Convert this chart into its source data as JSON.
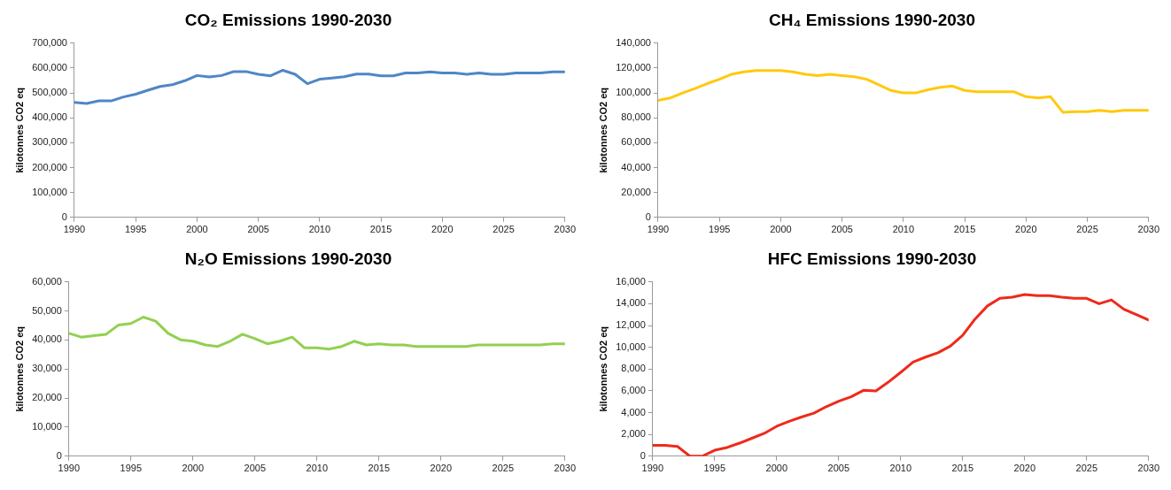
{
  "chart_data": [
    {
      "type": "line",
      "title": "CO₂ Emissions 1990-2030",
      "ylabel": "kilotonnes CO2 eq",
      "x": [
        1990,
        1991,
        1992,
        1993,
        1994,
        1995,
        1996,
        1997,
        1998,
        1999,
        2000,
        2001,
        2002,
        2003,
        2004,
        2005,
        2006,
        2007,
        2008,
        2009,
        2010,
        2011,
        2012,
        2013,
        2014,
        2015,
        2016,
        2017,
        2018,
        2019,
        2020,
        2021,
        2022,
        2023,
        2024,
        2025,
        2026,
        2027,
        2028,
        2029,
        2030
      ],
      "series": [
        {
          "color": "#4f86c6",
          "values": [
            462000,
            458000,
            468000,
            468000,
            484000,
            495000,
            511000,
            526000,
            533000,
            549000,
            570000,
            564000,
            570000,
            586000,
            586000,
            575000,
            569000,
            591000,
            575000,
            537000,
            555000,
            560000,
            565000,
            576000,
            576000,
            569000,
            569000,
            580000,
            580000,
            585000,
            580000,
            580000,
            575000,
            580000,
            575000,
            575000,
            580000,
            580000,
            580000,
            585000,
            585000
          ]
        }
      ],
      "xlim": [
        1990,
        2030
      ],
      "xticks": [
        1990,
        1995,
        2000,
        2005,
        2010,
        2015,
        2020,
        2025,
        2030
      ],
      "ylim": [
        0,
        700000
      ],
      "yticks": [
        {
          "value": 0,
          "label": "0"
        },
        {
          "value": 100000,
          "label": "100,000"
        },
        {
          "value": 200000,
          "label": "200,000"
        },
        {
          "value": 300000,
          "label": "300,000"
        },
        {
          "value": 400000,
          "label": "400,000"
        },
        {
          "value": 500000,
          "label": "500,000"
        },
        {
          "value": 600000,
          "label": "600,000"
        },
        {
          "value": 700000,
          "label": "700,000"
        }
      ],
      "grid": false,
      "legend": false,
      "marker": "none",
      "line_style": "solid"
    },
    {
      "type": "line",
      "title": "CH₄ Emissions 1990-2030",
      "ylabel": "kilotonnes CO2 eq",
      "x": [
        1990,
        1991,
        1992,
        1993,
        1994,
        1995,
        1996,
        1997,
        1998,
        1999,
        2000,
        2001,
        2002,
        2003,
        2004,
        2005,
        2006,
        2007,
        2008,
        2009,
        2010,
        2011,
        2012,
        2013,
        2014,
        2015,
        2016,
        2017,
        2018,
        2019,
        2020,
        2021,
        2022,
        2023,
        2024,
        2025,
        2026,
        2027,
        2028,
        2029,
        2030
      ],
      "series": [
        {
          "color": "#ffc90e",
          "values": [
            94000,
            96000,
            100000,
            103500,
            107500,
            111000,
            115000,
            117000,
            118000,
            118000,
            118000,
            117000,
            115000,
            114000,
            115000,
            114000,
            113000,
            111000,
            106500,
            102000,
            100000,
            100000,
            102500,
            104500,
            105500,
            102000,
            101000,
            101000,
            101000,
            101000,
            97000,
            96000,
            97000,
            84500,
            85000,
            85000,
            86000,
            85000,
            86000,
            86000,
            86000
          ]
        }
      ],
      "xlim": [
        1990,
        2030
      ],
      "xticks": [
        1990,
        1995,
        2000,
        2005,
        2010,
        2015,
        2020,
        2025,
        2030
      ],
      "ylim": [
        0,
        140000
      ],
      "yticks": [
        {
          "value": 0,
          "label": "0"
        },
        {
          "value": 20000,
          "label": "20,000"
        },
        {
          "value": 40000,
          "label": "40,000"
        },
        {
          "value": 60000,
          "label": "60,000"
        },
        {
          "value": 80000,
          "label": "80,000"
        },
        {
          "value": 100000,
          "label": "100,000"
        },
        {
          "value": 120000,
          "label": "120,000"
        },
        {
          "value": 140000,
          "label": "140,000"
        }
      ],
      "grid": false,
      "legend": false,
      "marker": "none",
      "line_style": "solid"
    },
    {
      "type": "line",
      "title": "N₂O Emissions 1990-2030",
      "ylabel": "kilotonnes CO2 eq",
      "x": [
        1990,
        1991,
        1992,
        1993,
        1994,
        1995,
        1996,
        1997,
        1998,
        1999,
        2000,
        2001,
        2002,
        2003,
        2004,
        2005,
        2006,
        2007,
        2008,
        2009,
        2010,
        2011,
        2012,
        2013,
        2014,
        2015,
        2016,
        2017,
        2018,
        2019,
        2020,
        2021,
        2022,
        2023,
        2024,
        2025,
        2026,
        2027,
        2028,
        2029,
        2030
      ],
      "series": [
        {
          "color": "#92d050",
          "values": [
            42300,
            41000,
            41500,
            42000,
            45200,
            45700,
            47900,
            46500,
            42300,
            40100,
            39600,
            38300,
            37800,
            39600,
            42000,
            40500,
            38700,
            39600,
            41000,
            37300,
            37300,
            36900,
            37800,
            39600,
            38300,
            38700,
            38300,
            38300,
            37800,
            37800,
            37800,
            37800,
            37800,
            38300,
            38300,
            38300,
            38300,
            38300,
            38300,
            38700,
            38700
          ]
        }
      ],
      "xlim": [
        1990,
        2030
      ],
      "xticks": [
        1990,
        1995,
        2000,
        2005,
        2010,
        2015,
        2020,
        2025,
        2030
      ],
      "ylim": [
        0,
        60000
      ],
      "yticks": [
        {
          "value": 0,
          "label": "0"
        },
        {
          "value": 10000,
          "label": "10,000"
        },
        {
          "value": 20000,
          "label": "20,000"
        },
        {
          "value": 30000,
          "label": "30,000"
        },
        {
          "value": 40000,
          "label": "40,000"
        },
        {
          "value": 50000,
          "label": "50,000"
        },
        {
          "value": 60000,
          "label": "60,000"
        }
      ],
      "grid": false,
      "legend": false,
      "marker": "none",
      "line_style": "solid"
    },
    {
      "type": "line",
      "title": "HFC Emissions 1990-2030",
      "ylabel": "kilotonnes CO2 eq",
      "x": [
        1990,
        1991,
        1992,
        1993,
        1994,
        1995,
        1996,
        1997,
        1998,
        1999,
        2000,
        2001,
        2002,
        2003,
        2004,
        2005,
        2006,
        2007,
        2008,
        2009,
        2010,
        2011,
        2012,
        2013,
        2014,
        2015,
        2016,
        2017,
        2018,
        2019,
        2020,
        2021,
        2022,
        2023,
        2024,
        2025,
        2026,
        2027,
        2028,
        2029,
        2030
      ],
      "series": [
        {
          "color": "#ee2a1b",
          "values": [
            1000,
            1000,
            900,
            0,
            0,
            550,
            800,
            1200,
            1650,
            2100,
            2750,
            3200,
            3600,
            3950,
            4550,
            5050,
            5450,
            6050,
            6000,
            6800,
            7700,
            8650,
            9100,
            9500,
            10100,
            11100,
            12600,
            13800,
            14500,
            14600,
            14850,
            14750,
            14750,
            14600,
            14500,
            14500,
            14000,
            14350,
            13500,
            13000,
            12500
          ]
        }
      ],
      "xlim": [
        1990,
        2030
      ],
      "xticks": [
        1990,
        1995,
        2000,
        2005,
        2010,
        2015,
        2020,
        2025,
        2030
      ],
      "ylim": [
        0,
        16000
      ],
      "yticks": [
        {
          "value": 0,
          "label": "0"
        },
        {
          "value": 2000,
          "label": "2,000"
        },
        {
          "value": 4000,
          "label": "4,000"
        },
        {
          "value": 6000,
          "label": "6,000"
        },
        {
          "value": 8000,
          "label": "8,000"
        },
        {
          "value": 10000,
          "label": "10,000"
        },
        {
          "value": 12000,
          "label": "12,000"
        },
        {
          "value": 14000,
          "label": "14,000"
        },
        {
          "value": 16000,
          "label": "16,000"
        }
      ],
      "grid": false,
      "legend": false,
      "marker": "none",
      "line_style": "solid"
    }
  ]
}
